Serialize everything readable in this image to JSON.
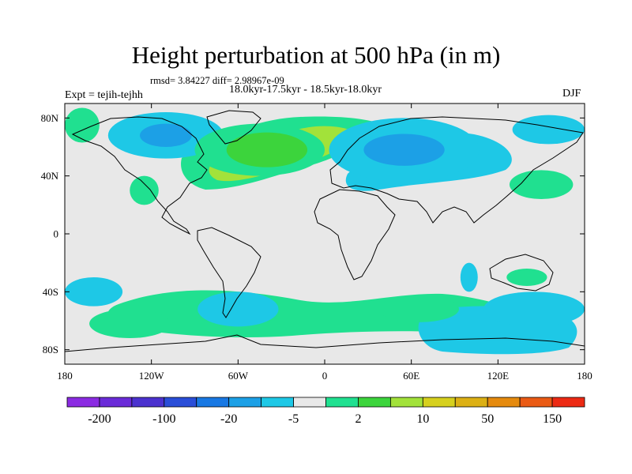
{
  "title": "Height perturbation at 500 hPa (in m)",
  "stats": "rmsd= 3.84227 diff= 2.98967e-09",
  "period": "18.0kyr-17.5kyr - 18.5kyr-18.0kyr",
  "experiment": "Expt = tejih-tejhh",
  "season": "DJF",
  "map": {
    "projection": "cylindrical-equidistant",
    "lon_range": [
      -180,
      180
    ],
    "lat_range": [
      -90,
      90
    ],
    "background_color": "#e8e8e8",
    "coastline_color": "#000000",
    "lon_ticks": [
      {
        "value": -180,
        "label": "180"
      },
      {
        "value": -120,
        "label": "120W"
      },
      {
        "value": -60,
        "label": "60W"
      },
      {
        "value": 0,
        "label": "0"
      },
      {
        "value": 60,
        "label": "60E"
      },
      {
        "value": 120,
        "label": "120E"
      },
      {
        "value": 180,
        "label": "180"
      }
    ],
    "lat_ticks": [
      {
        "value": 80,
        "label": "80N"
      },
      {
        "value": 40,
        "label": "40N"
      },
      {
        "value": 0,
        "label": "0"
      },
      {
        "value": -40,
        "label": "40S"
      },
      {
        "value": -80,
        "label": "80S"
      }
    ]
  },
  "colorbar": {
    "colors": [
      "#8b2be2",
      "#6a2bd8",
      "#4b32cf",
      "#2a4ed8",
      "#1878e3",
      "#1ca0e6",
      "#1ec8e6",
      "#e8e8e8",
      "#20e090",
      "#3cd43c",
      "#a2e23a",
      "#d6d01e",
      "#dcb014",
      "#e58a0e",
      "#ea5a14",
      "#ec2a14"
    ],
    "labels": [
      {
        "boundary": 1,
        "text": "-200"
      },
      {
        "boundary": 3,
        "text": "-100"
      },
      {
        "boundary": 5,
        "text": "-20"
      },
      {
        "boundary": 7,
        "text": "-5"
      },
      {
        "boundary": 9,
        "text": "2"
      },
      {
        "boundary": 11,
        "text": "10"
      },
      {
        "boundary": 13,
        "text": "50"
      },
      {
        "boundary": 15,
        "text": "150"
      }
    ]
  },
  "fields": [
    {
      "level": "-5",
      "color": "#1ec8e6",
      "lon": -110,
      "lat": 68,
      "rx": 40,
      "ry": 16
    },
    {
      "level": "-20",
      "color": "#1ca0e6",
      "lon": -110,
      "lat": 68,
      "rx": 18,
      "ry": 8
    },
    {
      "level": "-5",
      "color": "#1ec8e6",
      "lon": 55,
      "lat": 58,
      "rx": 52,
      "ry": 22
    },
    {
      "level": "-20",
      "color": "#1ca0e6",
      "lon": 55,
      "lat": 58,
      "rx": 28,
      "ry": 11
    },
    {
      "level": "-5",
      "color": "#1ec8e6",
      "lon": 155,
      "lat": 72,
      "rx": 25,
      "ry": 10
    },
    {
      "level": "2",
      "color": "#20e090",
      "lon": -45,
      "lat": 58,
      "rx": 45,
      "ry": 18
    },
    {
      "level": "10",
      "color": "#3cd43c",
      "lon": -40,
      "lat": 58,
      "rx": 28,
      "ry": 12
    },
    {
      "level": "2",
      "color": "#20e090",
      "lon": -168,
      "lat": 75,
      "rx": 12,
      "ry": 12
    },
    {
      "level": "2",
      "color": "#20e090",
      "lon": 150,
      "lat": 34,
      "rx": 22,
      "ry": 10
    },
    {
      "level": "2",
      "color": "#20e090",
      "lon": -125,
      "lat": 30,
      "rx": 10,
      "ry": 10
    },
    {
      "level": "2",
      "color": "#20e090",
      "lon": -135,
      "lat": -62,
      "rx": 28,
      "ry": 10
    },
    {
      "level": "2",
      "color": "#20e090",
      "lon": 65,
      "lat": -52,
      "rx": 28,
      "ry": 9
    },
    {
      "level": "2",
      "color": "#20e090",
      "lon": 140,
      "lat": -30,
      "rx": 14,
      "ry": 6
    },
    {
      "level": "-5",
      "color": "#1ec8e6",
      "lon": 145,
      "lat": -52,
      "rx": 35,
      "ry": 12
    },
    {
      "level": "-5",
      "color": "#1ec8e6",
      "lon": -60,
      "lat": -52,
      "rx": 28,
      "ry": 12
    },
    {
      "level": "-5",
      "color": "#1ec8e6",
      "lon": 100,
      "lat": -30,
      "rx": 6,
      "ry": 10
    },
    {
      "level": "-5",
      "color": "#1ec8e6",
      "lon": -160,
      "lat": -40,
      "rx": 20,
      "ry": 10
    }
  ]
}
